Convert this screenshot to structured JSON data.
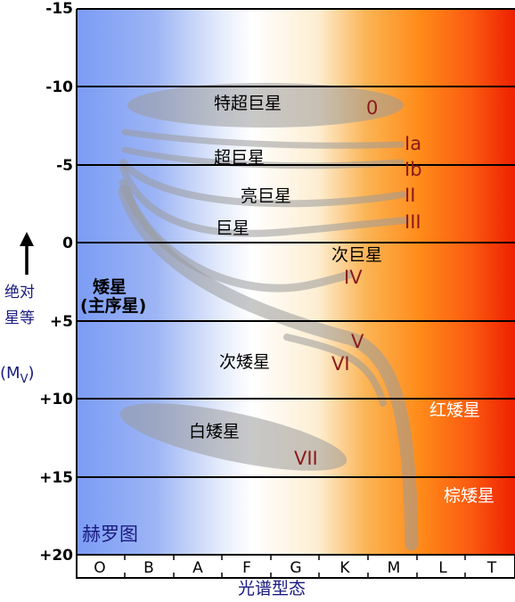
{
  "y_axis": {
    "ticks": [
      "-15",
      "-10",
      "-5",
      "0",
      "+5",
      "+10",
      "+15",
      "+20"
    ],
    "label_line1": "绝对",
    "label_line2": "星等",
    "label_line3": "(M",
    "label_sub": "V",
    "label_close": ")"
  },
  "x_axis": {
    "classes": [
      "O",
      "B",
      "A",
      "F",
      "G",
      "K",
      "M",
      "L",
      "T"
    ],
    "title": "光谱型态"
  },
  "diagram_title": "赫罗图",
  "regions": {
    "hypergiants": "特超巨星",
    "supergiants": "超巨星",
    "bright_giants": "亮巨星",
    "giants": "巨星",
    "subgiants": "次巨星",
    "dwarfs_line1": "矮星",
    "dwarfs_line2": "(主序星)",
    "subdwarfs": "次矮星",
    "white_dwarfs": "白矮星",
    "red_dwarfs": "红矮星",
    "brown_dwarfs": "棕矮星"
  },
  "luminosity_classes": {
    "c0": "0",
    "cIa": "Ia",
    "cIb": "Ib",
    "cII": "II",
    "cIII": "III",
    "cIV": "IV",
    "cV": "V",
    "cVI": "VI",
    "cVII": "VII"
  },
  "colors": {
    "blue_end": "#7b9cf5",
    "white_mid": "#ffffff",
    "orange": "#ff8c1a",
    "red_end": "#ee1f00",
    "class_label": "#8b1a1a",
    "axis_text": "#1a1a80"
  }
}
